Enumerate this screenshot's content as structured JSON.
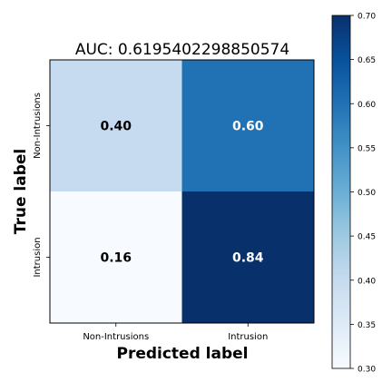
{
  "chart_data": {
    "type": "heatmap",
    "title": "AUC: 0.6195402298850574",
    "xlabel": "Predicted label",
    "ylabel": "True label",
    "x_categories": [
      "Non-Intrusions",
      "Intrusion"
    ],
    "y_categories": [
      "Non-Intrusions",
      "Intrusion"
    ],
    "values": [
      [
        0.4,
        0.6
      ],
      [
        0.16,
        0.84
      ]
    ],
    "cell_labels": [
      [
        "0.40",
        "0.60"
      ],
      [
        "0.16",
        "0.84"
      ]
    ],
    "colormap": "Blues",
    "color_scale": [
      "#f7fbff",
      "#deebf7",
      "#c6dbef",
      "#9ecae1",
      "#6baed6",
      "#4292c6",
      "#2171b5",
      "#08519c",
      "#08306b"
    ],
    "clim": [
      0.3,
      0.7
    ],
    "colorbar": {
      "ticks": [
        0.3,
        0.35,
        0.4,
        0.45,
        0.5,
        0.55,
        0.6,
        0.65,
        0.7
      ],
      "tick_labels": [
        "0.30",
        "0.35",
        "0.40",
        "0.45",
        "0.50",
        "0.55",
        "0.60",
        "0.65",
        "0.70"
      ]
    },
    "grid": false
  }
}
